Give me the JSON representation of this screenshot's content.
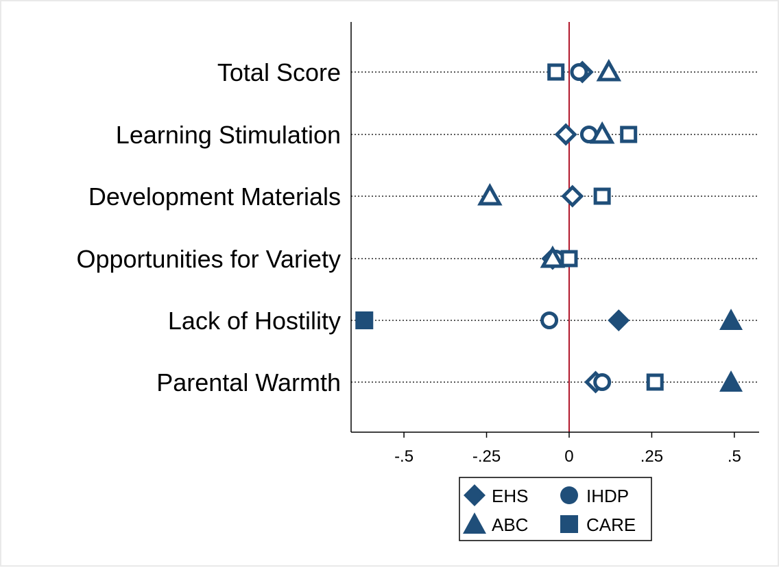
{
  "chart_data": {
    "type": "scatter",
    "orientation": "horizontal",
    "categories": [
      "Total Score",
      "Learning Stimulation",
      "Development Materials",
      "Opportunities for Variety",
      "Lack of Hostility",
      "Parental Warmth"
    ],
    "x_ticks": [
      "-.5",
      "-.25",
      "0",
      ".25",
      ".5"
    ],
    "x_tick_values": [
      -0.5,
      -0.25,
      0,
      0.25,
      0.5
    ],
    "xlim": [
      -0.66,
      0.575
    ],
    "reference_line": {
      "x": 0,
      "color": "#b2182b"
    },
    "grid": "dotted horizontal per category",
    "legend_position": "bottom",
    "series": [
      {
        "name": "EHS",
        "marker": "diamond",
        "values": [
          0.04,
          -0.01,
          0.01,
          -0.05,
          0.15,
          0.08
        ]
      },
      {
        "name": "IHDP",
        "marker": "circle",
        "values": [
          0.03,
          0.06,
          null,
          -0.04,
          -0.06,
          0.1
        ]
      },
      {
        "name": "ABC",
        "marker": "triangle",
        "values": [
          0.12,
          0.1,
          -0.24,
          -0.05,
          0.49,
          0.49
        ]
      },
      {
        "name": "CARE",
        "marker": "square",
        "values": [
          -0.04,
          0.18,
          0.1,
          0.0,
          -0.62,
          0.26
        ]
      }
    ],
    "filled": [
      [
        false,
        false,
        false,
        false
      ],
      [
        false,
        false,
        false,
        false
      ],
      [
        false,
        false,
        false,
        false
      ],
      [
        false,
        false,
        false,
        false
      ],
      [
        true,
        false,
        true,
        true
      ],
      [
        false,
        false,
        true,
        false
      ]
    ],
    "colors": {
      "marker": "#1f4e79",
      "axis": "#000000"
    }
  }
}
